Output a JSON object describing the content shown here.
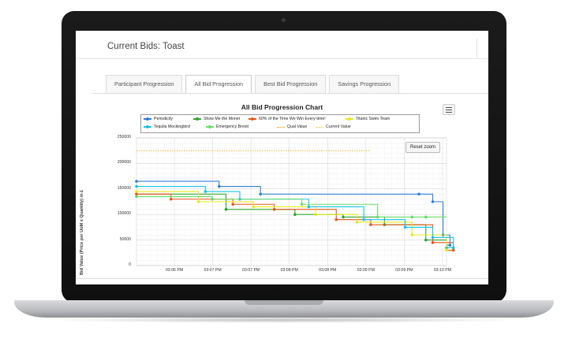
{
  "page": {
    "title": "Current Bids: Toast"
  },
  "tabs": [
    {
      "label": "Participant Progression",
      "active": false
    },
    {
      "label": "All Bid Progression",
      "active": true
    },
    {
      "label": "Best Bid Progression",
      "active": false
    },
    {
      "label": "Savings Progression",
      "active": false
    }
  ],
  "chart": {
    "reset_label": "Reset zoom",
    "menu_icon": "hamburger-menu-icon"
  },
  "chart_data": {
    "type": "line",
    "step": true,
    "title": "All Bid Progression Chart",
    "xlabel": "",
    "ylabel": "Bid Value (Price per UoM x Quantity) in £",
    "ylim": [
      0,
      250000
    ],
    "xlim": [
      "03:06 PM",
      "03:10 PM"
    ],
    "yticks": [
      "0",
      "50000",
      "100000",
      "150000",
      "200000",
      "250000"
    ],
    "xticks": [
      "03:06 PM",
      "03:07 PM",
      "03:07 PM",
      "03:08 PM",
      "03:08 PM",
      "03:09 PM",
      "03:09 PM",
      "03:10 PM"
    ],
    "x_minutes_range": [
      0,
      4.5
    ],
    "grid": true,
    "legend_position": "top",
    "series": [
      {
        "name": "Periodicity",
        "color": "#2f7ed8",
        "marker": "circle",
        "points": [
          [
            0,
            165000
          ],
          [
            1.2,
            155000
          ],
          [
            1.8,
            140000
          ],
          [
            4.1,
            140000
          ],
          [
            4.3,
            125000
          ],
          [
            4.45,
            60000
          ],
          [
            4.55,
            40000
          ]
        ]
      },
      {
        "name": "Show Me the Monet",
        "color": "#2fa52f",
        "marker": "cross",
        "points": [
          [
            0,
            140000
          ],
          [
            1.3,
            110000
          ],
          [
            2.3,
            100000
          ],
          [
            3.0,
            95000
          ],
          [
            3.6,
            80000
          ],
          [
            4.2,
            50000
          ],
          [
            4.5,
            35000
          ]
        ]
      },
      {
        "name": "60% of the Time We Win Every-time!",
        "color": "#e8551a",
        "marker": "diamond",
        "points": [
          [
            0,
            140000
          ],
          [
            0.5,
            130000
          ],
          [
            1.4,
            120000
          ],
          [
            2.0,
            110000
          ],
          [
            2.9,
            90000
          ],
          [
            3.4,
            80000
          ],
          [
            4.3,
            45000
          ],
          [
            4.6,
            30000
          ]
        ]
      },
      {
        "name": "Titanic Swim Team",
        "color": "#e8e81a",
        "marker": "triangle",
        "points": [
          [
            0,
            145000
          ],
          [
            0.9,
            125000
          ],
          [
            1.7,
            115000
          ],
          [
            2.6,
            100000
          ],
          [
            3.2,
            85000
          ],
          [
            4.0,
            60000
          ],
          [
            4.5,
            30000
          ]
        ]
      },
      {
        "name": "Tequila Mockingbird",
        "color": "#1ac0e8",
        "marker": "triangle-down",
        "points": [
          [
            0,
            155000
          ],
          [
            1.0,
            145000
          ],
          [
            1.5,
            130000
          ],
          [
            2.5,
            115000
          ],
          [
            3.3,
            90000
          ],
          [
            3.9,
            75000
          ],
          [
            4.3,
            55000
          ],
          [
            4.6,
            35000
          ]
        ]
      },
      {
        "name": "Emergency Brexit",
        "color": "#66dd66",
        "marker": "circle",
        "points": [
          [
            0,
            135000
          ],
          [
            1.1,
            130000
          ],
          [
            2.4,
            120000
          ],
          [
            3.5,
            95000
          ],
          [
            4.0,
            95000
          ],
          [
            4.2,
            95000
          ]
        ]
      },
      {
        "name": "Qual Value",
        "color": "#f2b94a",
        "dash": true,
        "points": [
          [
            0,
            225000
          ],
          [
            3.4,
            225000
          ]
        ]
      },
      {
        "name": "Current Value",
        "color": "#f5dc72",
        "dash": true,
        "points": []
      }
    ]
  }
}
